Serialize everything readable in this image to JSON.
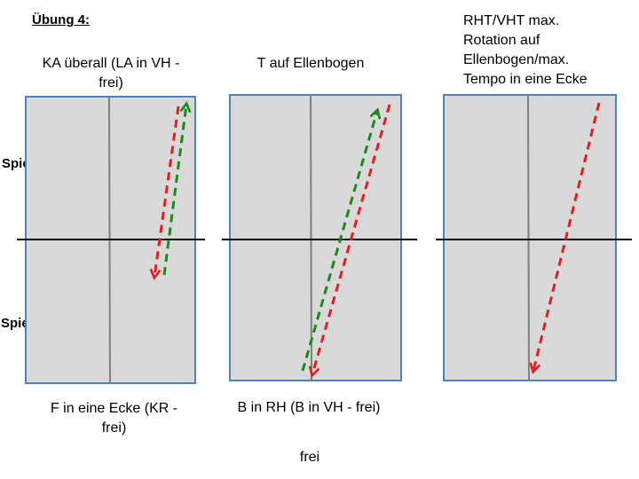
{
  "heading": "Übung 4:",
  "players": {
    "a": "Spieler A",
    "b": "Spieler B"
  },
  "panels": [
    {
      "top_caption": "KA überall (LA in VH -\nfrei)",
      "bottom_caption": "F in eine Ecke (KR -\nfrei)"
    },
    {
      "top_caption": "T auf Ellenbogen",
      "bottom_caption": "B in RH (B in VH - frei)"
    },
    {
      "top_caption": "RHT/VHT max.\nRotation auf\nEllenbogen/max.\nTempo in eine Ecke",
      "bottom_caption": ""
    }
  ],
  "footer": "frei",
  "colors": {
    "table_fill": "#d9d9d9",
    "table_border": "#4f81bd",
    "center_line": "#808080",
    "net": "#000000",
    "arrow_red": "#e02020",
    "arrow_green": "#1a8a1a"
  }
}
